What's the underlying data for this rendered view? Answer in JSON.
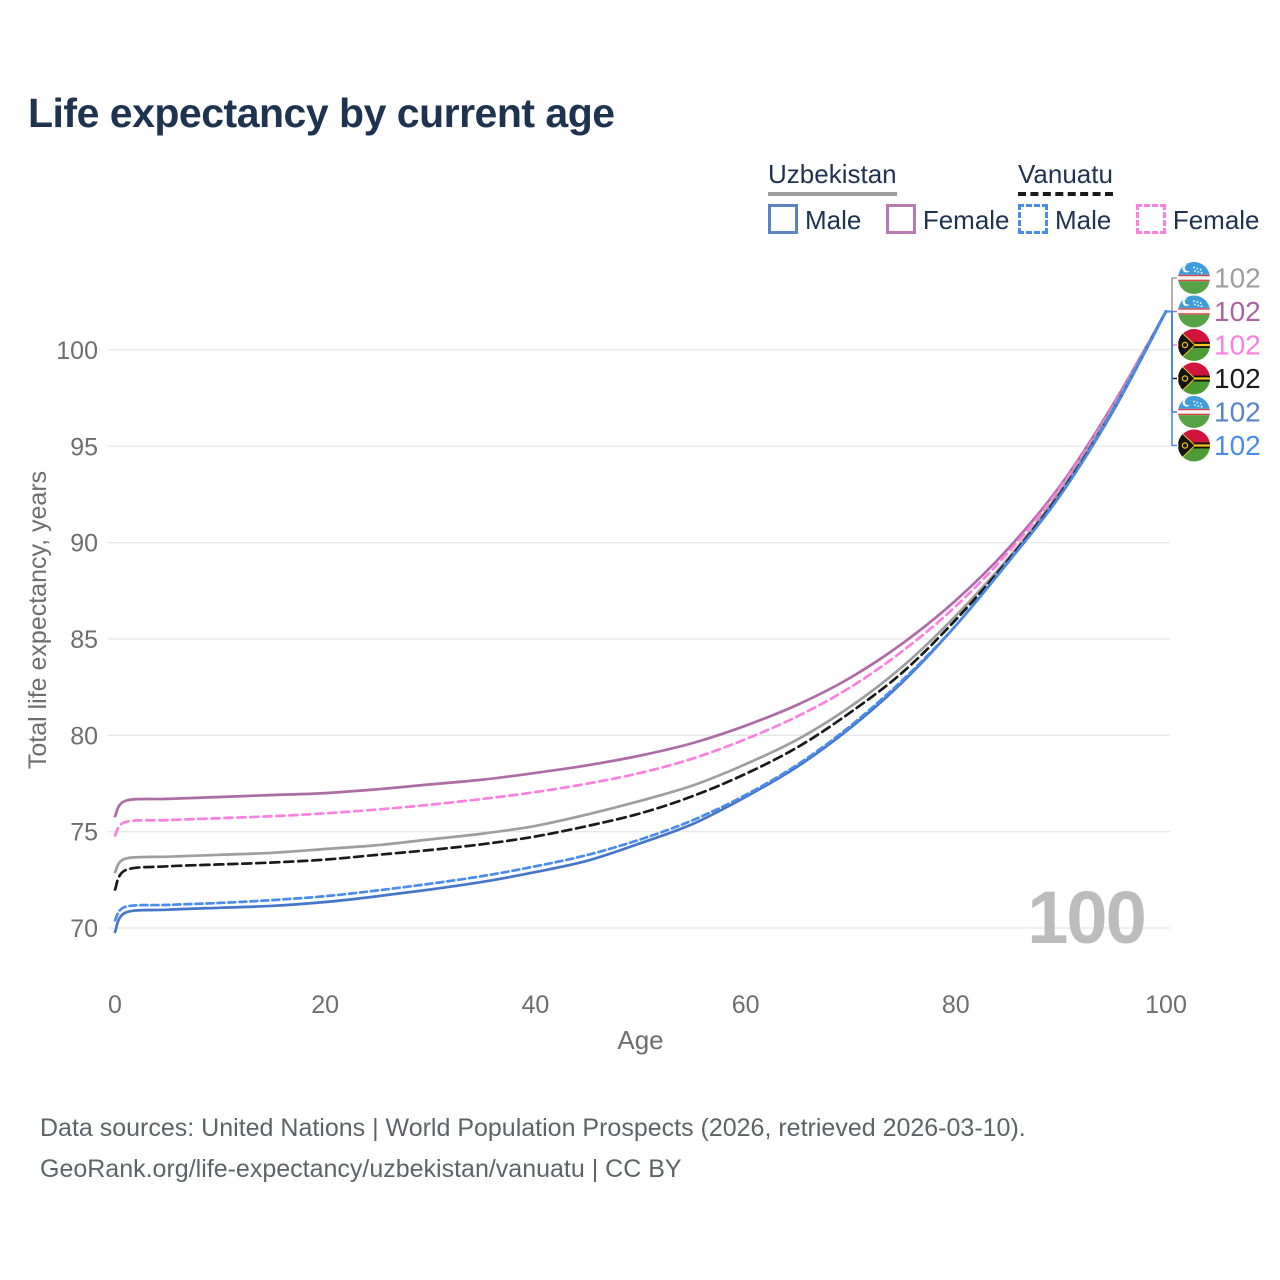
{
  "header": {
    "title": "Life expectancy by current age"
  },
  "legend": {
    "groups": [
      {
        "label": "Uzbekistan",
        "line": {
          "color": "#9e9e9e",
          "style": "solid"
        },
        "items": [
          {
            "label": "Male",
            "color": "#5b84c4",
            "style": "solid"
          },
          {
            "label": "Female",
            "color": "#b87ab2",
            "style": "solid"
          }
        ]
      },
      {
        "label": "Vanuatu",
        "line": {
          "color": "#1a1a1a",
          "style": "dashed"
        },
        "items": [
          {
            "label": "Male",
            "color": "#4a8ceb",
            "style": "dashed"
          },
          {
            "label": "Female",
            "color": "#fb80e1",
            "style": "dashed"
          }
        ]
      }
    ]
  },
  "chart_data": {
    "type": "line",
    "title": "Life expectancy by current age",
    "xlabel": "Age",
    "ylabel": "Total life expectancy, years",
    "xlim": [
      0,
      100
    ],
    "ylim": [
      69,
      103
    ],
    "xticks": [
      0,
      20,
      40,
      60,
      80,
      100
    ],
    "yticks": [
      70,
      75,
      80,
      85,
      90,
      95,
      100
    ],
    "grid": "horizontal-only",
    "watermark": "100",
    "x": [
      0,
      1,
      5,
      10,
      15,
      20,
      25,
      30,
      35,
      40,
      45,
      50,
      55,
      60,
      65,
      70,
      75,
      80,
      85,
      90,
      95,
      100
    ],
    "series": [
      {
        "id": "uz-female",
        "name": "Uzbekistan Female",
        "country": "Uzbekistan",
        "sex": "Female",
        "color": "#ae6ca6",
        "dash": null,
        "label_color": "#a963a1",
        "flag": "uz",
        "row": 1,
        "end_label": "102",
        "values": [
          75.8,
          76.6,
          76.7,
          76.8,
          76.9,
          77.0,
          77.2,
          77.45,
          77.7,
          78.05,
          78.45,
          78.95,
          79.6,
          80.5,
          81.6,
          83.0,
          84.8,
          87.0,
          89.7,
          93.0,
          97.2,
          102
        ]
      },
      {
        "id": "vu-female",
        "name": "Vanuatu Female",
        "country": "Vanuatu",
        "sex": "Female",
        "color": "#fb80e1",
        "dash": "8 5",
        "label_color": "#fb80e1",
        "flag": "vu",
        "row": 2,
        "end_label": "102",
        "values": [
          74.8,
          75.5,
          75.6,
          75.7,
          75.8,
          75.95,
          76.15,
          76.4,
          76.7,
          77.05,
          77.5,
          78.05,
          78.8,
          79.8,
          81.0,
          82.5,
          84.4,
          86.7,
          89.5,
          92.9,
          97.1,
          102
        ]
      },
      {
        "id": "uz-all",
        "name": "Uzbekistan",
        "country": "Uzbekistan",
        "sex": "Both",
        "color": "#9e9e9e",
        "dash": null,
        "label_color": "#9e9e9e",
        "flag": "uz",
        "row": 0,
        "end_label": "102",
        "values": [
          72.9,
          73.6,
          73.7,
          73.8,
          73.9,
          74.1,
          74.3,
          74.6,
          74.9,
          75.3,
          75.9,
          76.6,
          77.4,
          78.5,
          79.8,
          81.5,
          83.6,
          86.2,
          89.2,
          92.7,
          97.0,
          102
        ]
      },
      {
        "id": "vu-all",
        "name": "Vanuatu",
        "country": "Vanuatu",
        "sex": "Both",
        "color": "#1a1a1a",
        "dash": "9 5",
        "label_color": "#1a1a1a",
        "flag": "vu",
        "row": 3,
        "end_label": "102",
        "values": [
          72.0,
          73.0,
          73.2,
          73.3,
          73.4,
          73.55,
          73.8,
          74.05,
          74.35,
          74.75,
          75.3,
          75.95,
          76.85,
          78.0,
          79.4,
          81.2,
          83.3,
          86.0,
          89.1,
          92.6,
          96.9,
          102
        ]
      },
      {
        "id": "uz-male",
        "name": "Uzbekistan Male",
        "country": "Uzbekistan",
        "sex": "Male",
        "color": "#4576c8",
        "dash": null,
        "label_color": "#5b84c4",
        "flag": "uz",
        "row": 4,
        "end_label": "102",
        "values": [
          69.8,
          70.8,
          70.95,
          71.05,
          71.15,
          71.35,
          71.65,
          72.0,
          72.4,
          72.9,
          73.5,
          74.4,
          75.4,
          76.8,
          78.4,
          80.4,
          82.8,
          85.7,
          89.0,
          92.5,
          96.85,
          102
        ]
      },
      {
        "id": "vu-male",
        "name": "Vanuatu Male",
        "country": "Vanuatu",
        "sex": "Male",
        "color": "#4a8ceb",
        "dash": "7 4",
        "label_color": "#4a8ceb",
        "flag": "vu",
        "row": 5,
        "end_label": "102",
        "values": [
          70.4,
          71.1,
          71.2,
          71.3,
          71.45,
          71.65,
          71.95,
          72.3,
          72.7,
          73.2,
          73.8,
          74.6,
          75.6,
          76.9,
          78.5,
          80.5,
          82.9,
          85.7,
          89.0,
          92.5,
          96.9,
          102
        ]
      }
    ],
    "legend_position": "top-right"
  },
  "footer": {
    "line1": "Data sources: United Nations | World Population Prospects (2026, retrieved 2026-03-10).",
    "line2": "GeoRank.org/life-expectancy/uzbekistan/vanuatu | CC BY"
  }
}
